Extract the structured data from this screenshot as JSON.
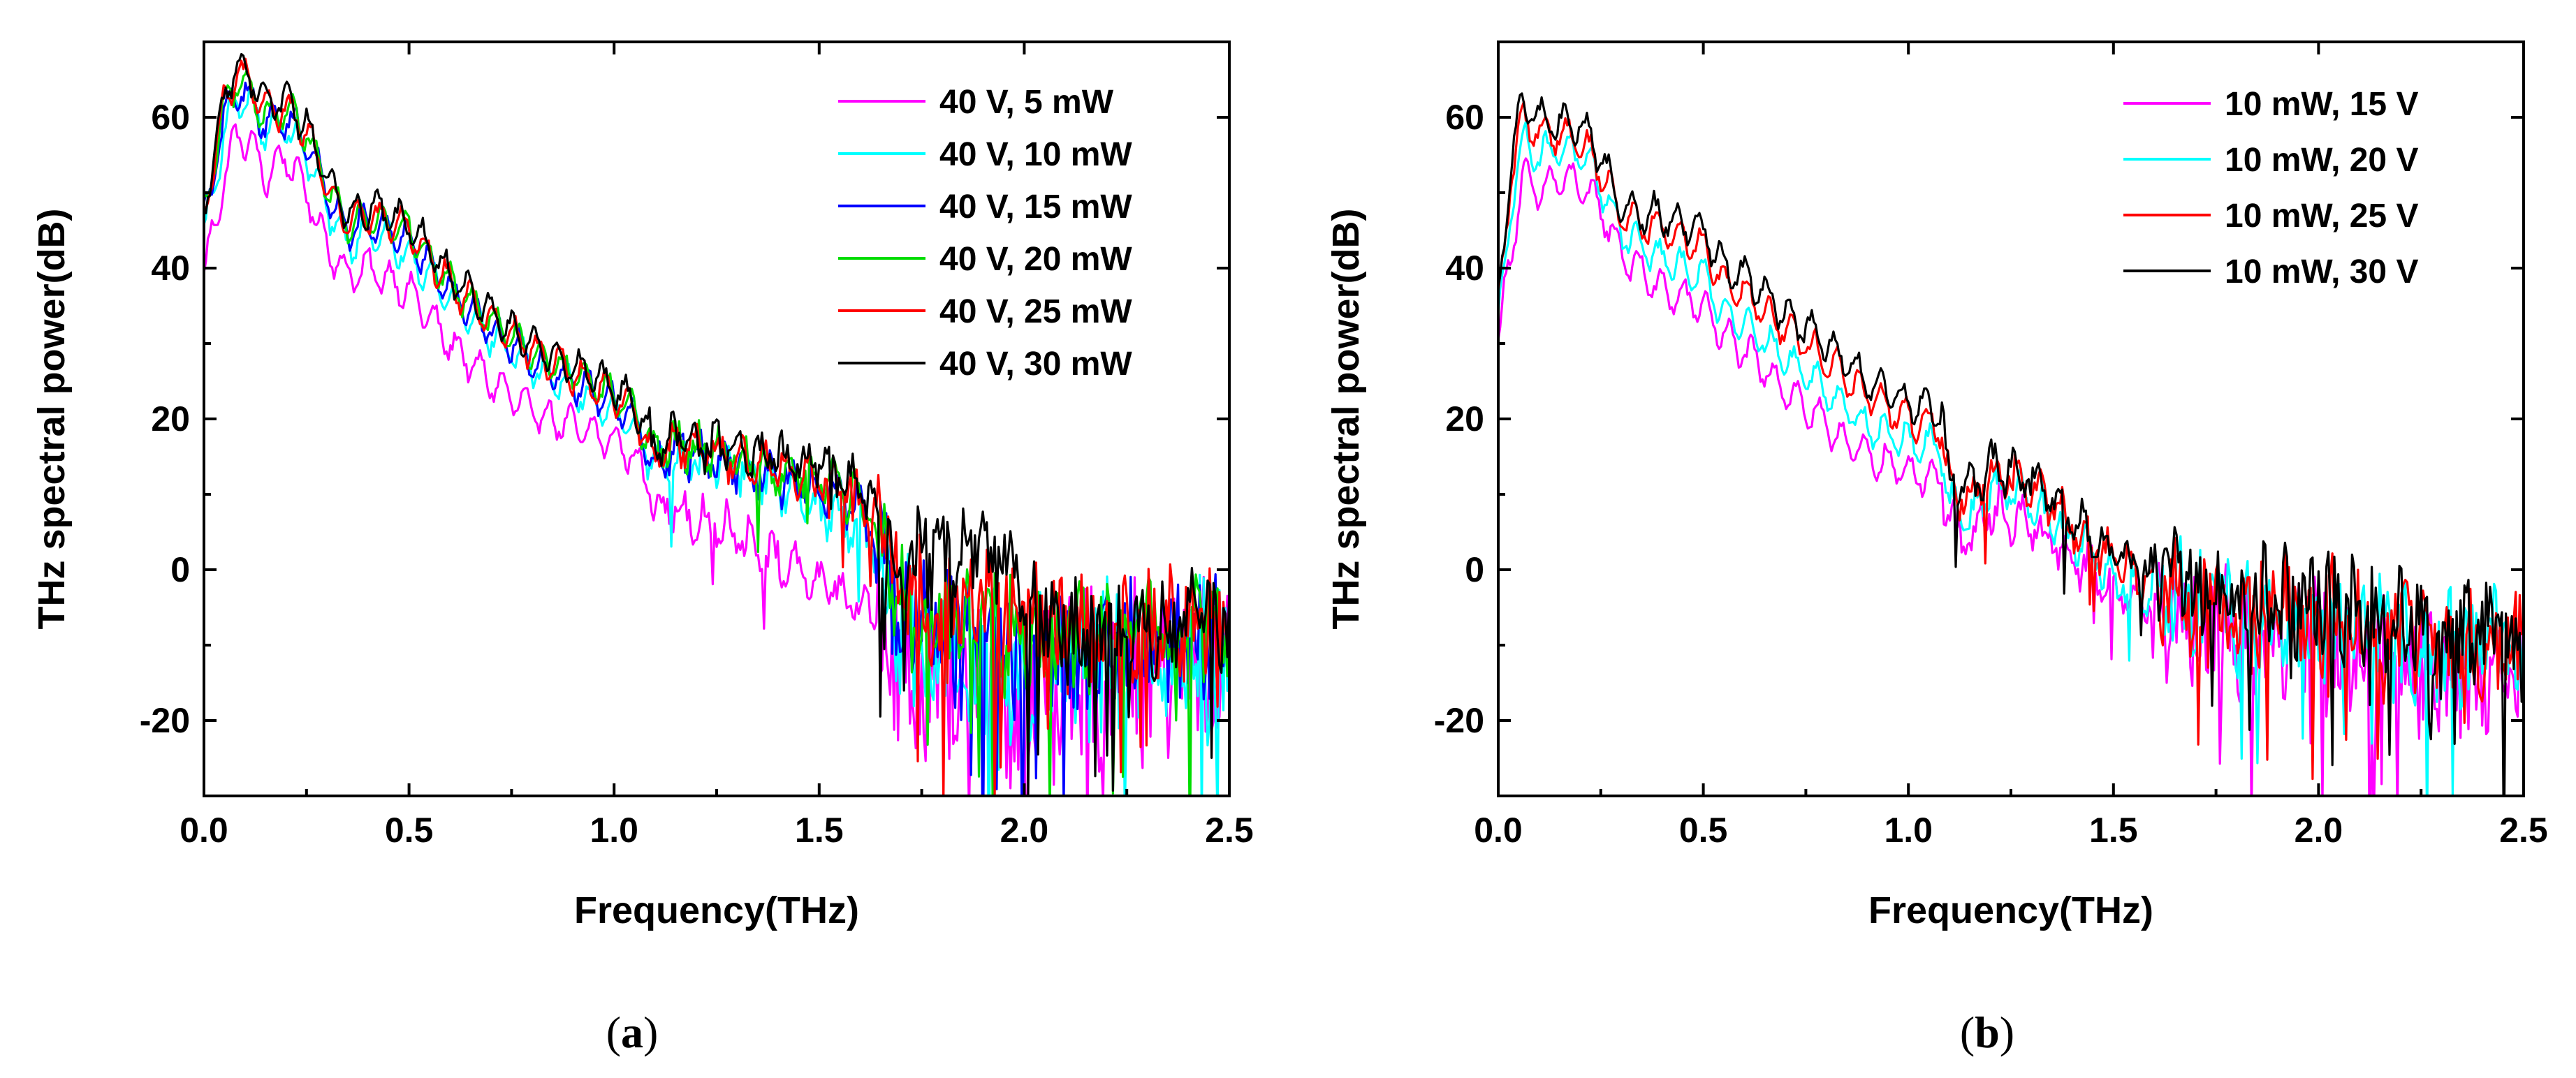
{
  "chart_data": [
    {
      "type": "line",
      "xlabel": "Frequency(THz)",
      "ylabel": "THz spectral power(dB)",
      "xlim": [
        0,
        2.5
      ],
      "ylim": [
        -30,
        70
      ],
      "xticks": [
        "0.0",
        "0.5",
        "1.0",
        "1.5",
        "2.0",
        "2.5"
      ],
      "yticks": [
        "-20",
        "0",
        "20",
        "40",
        "60"
      ],
      "xtick_values": [
        0,
        0.5,
        1.0,
        1.5,
        2.0,
        2.5
      ],
      "ytick_values": [
        -20,
        0,
        20,
        40,
        60
      ],
      "grid": false,
      "legend_position": "top-right",
      "panel_label": {
        "open": "(",
        "letter": "a",
        "close": ")"
      },
      "series": [
        {
          "name": "40 V, 5 mW",
          "color": "#ff00ff",
          "offset": -7.5,
          "cutoff": 1.64,
          "noise": 11,
          "x": [
            0,
            0.05,
            0.08,
            0.12,
            0.15,
            0.2,
            0.25,
            0.3,
            0.35,
            0.4,
            0.5,
            0.6,
            0.7,
            0.8,
            0.9,
            1.0,
            1.05,
            1.1,
            1.15,
            1.2,
            1.3,
            1.4,
            1.5,
            1.6,
            1.65,
            1.7,
            1.8,
            1.9,
            2.0,
            2.1,
            2.2,
            2.3,
            2.4,
            2.5
          ],
          "values": [
            39,
            52,
            58,
            56,
            52,
            55,
            50,
            43,
            39,
            40,
            37,
            30,
            25,
            21,
            19,
            17,
            15,
            9,
            8,
            7,
            5,
            1,
            -2,
            -5,
            -6,
            -14,
            -15,
            -16,
            -17,
            -15,
            -14,
            -14,
            -13,
            -13
          ]
        },
        {
          "name": "40 V, 10 mW",
          "color": "#00ffff",
          "offset": -2.5,
          "cutoff": 1.64,
          "noise": 9,
          "x": [
            0,
            0.05,
            0.08,
            0.12,
            0.15,
            0.2,
            0.25,
            0.3,
            0.35,
            0.4,
            0.5,
            0.6,
            0.7,
            0.8,
            0.9,
            1.0,
            1.05,
            1.1,
            1.15,
            1.2,
            1.3,
            1.4,
            1.5,
            1.6,
            1.65,
            1.7,
            1.8,
            1.9,
            2.0,
            2.1,
            2.2,
            2.3,
            2.4,
            2.5
          ],
          "values": [
            44,
            58,
            63,
            61,
            58,
            59,
            55,
            48,
            43,
            45,
            42,
            36,
            31,
            27,
            24,
            21,
            19,
            14,
            15,
            14,
            13,
            11,
            8,
            5,
            2,
            -8,
            -11,
            -12,
            -13,
            -12,
            -11,
            -11,
            -10,
            -10
          ]
        },
        {
          "name": "40 V, 15 mW",
          "color": "#0000ff",
          "offset": -0.8,
          "cutoff": 1.64,
          "noise": 8,
          "x": [
            0,
            0.05,
            0.08,
            0.12,
            0.15,
            0.2,
            0.25,
            0.3,
            0.35,
            0.4,
            0.5,
            0.6,
            0.7,
            0.8,
            0.9,
            1.0,
            1.05,
            1.1,
            1.15,
            1.2,
            1.3,
            1.4,
            1.5,
            1.6,
            1.65,
            1.7,
            1.8,
            1.9,
            2.0,
            2.1,
            2.2,
            2.3,
            2.4,
            2.5
          ],
          "values": [
            46,
            60,
            64,
            62,
            59,
            60,
            57,
            50,
            45,
            46,
            44,
            37,
            32,
            28,
            25,
            22,
            20,
            14,
            16,
            15,
            14,
            12,
            11,
            8,
            3,
            -6,
            -9,
            -10,
            -11,
            -10,
            -10,
            -10,
            -9,
            -9
          ]
        },
        {
          "name": "40 V, 20 mW",
          "color": "#00dd00",
          "offset": 0,
          "cutoff": 1.64,
          "noise": 7,
          "x": [
            0,
            0.05,
            0.08,
            0.12,
            0.15,
            0.2,
            0.25,
            0.3,
            0.35,
            0.4,
            0.5,
            0.6,
            0.7,
            0.8,
            0.9,
            1.0,
            1.05,
            1.1,
            1.15,
            1.2,
            1.3,
            1.4,
            1.5,
            1.6,
            1.65,
            1.7,
            1.8,
            1.9,
            2.0,
            2.1,
            2.2,
            2.3,
            2.4,
            2.5
          ],
          "values": [
            47,
            61,
            65,
            63,
            60,
            61,
            58,
            51,
            46,
            47,
            45,
            38,
            33,
            29,
            26,
            23,
            21,
            15,
            17,
            16,
            15,
            13,
            12,
            9,
            4,
            -4,
            -7,
            -8,
            -9,
            -9,
            -9,
            -9,
            -8,
            -8
          ]
        },
        {
          "name": "40 V, 25 mW",
          "color": "#ff0000",
          "offset": 0.5,
          "cutoff": 1.64,
          "noise": 7,
          "x": [
            0,
            0.05,
            0.08,
            0.12,
            0.15,
            0.2,
            0.25,
            0.3,
            0.35,
            0.4,
            0.5,
            0.6,
            0.7,
            0.8,
            0.9,
            1.0,
            1.05,
            1.1,
            1.15,
            1.2,
            1.3,
            1.4,
            1.5,
            1.6,
            1.65,
            1.7,
            1.8,
            1.9,
            2.0,
            2.1,
            2.2,
            2.3,
            2.4,
            2.5
          ],
          "values": [
            47,
            62,
            66,
            64,
            61,
            61,
            58,
            51,
            46,
            47,
            45,
            38,
            33,
            29,
            26,
            23,
            21,
            15,
            17,
            16,
            15,
            13,
            12,
            10,
            5,
            -2,
            -5,
            -6,
            -7,
            -8,
            -8,
            -8,
            -7,
            -7
          ]
        },
        {
          "name": "40 V, 30 mW",
          "color": "#000000",
          "offset": 1.2,
          "cutoff": 1.64,
          "noise": 6,
          "x": [
            0,
            0.05,
            0.08,
            0.12,
            0.15,
            0.2,
            0.25,
            0.3,
            0.35,
            0.4,
            0.5,
            0.6,
            0.7,
            0.8,
            0.9,
            1.0,
            1.05,
            1.1,
            1.15,
            1.2,
            1.3,
            1.4,
            1.5,
            1.6,
            1.65,
            1.7,
            1.8,
            1.9,
            2.0,
            2.1,
            2.2,
            2.3,
            2.4,
            2.5
          ],
          "values": [
            48,
            63,
            67,
            65,
            62,
            62,
            59,
            52,
            47,
            48,
            46,
            39,
            34,
            30,
            27,
            24,
            22,
            16,
            18,
            17,
            16,
            15,
            14,
            11,
            6,
            1,
            3,
            2,
            -3,
            -8,
            -8,
            -8,
            -7,
            -7
          ]
        }
      ]
    },
    {
      "type": "line",
      "xlabel": "Frequency(THz)",
      "ylabel": "THz spectral power(dB)",
      "xlim": [
        0,
        2.5
      ],
      "ylim": [
        -30,
        70
      ],
      "xticks": [
        "0.0",
        "0.5",
        "1.0",
        "1.5",
        "2.0",
        "2.5"
      ],
      "yticks": [
        "-20",
        "0",
        "20",
        "40",
        "60"
      ],
      "xtick_values": [
        0,
        0.5,
        1.0,
        1.5,
        2.0,
        2.5
      ],
      "ytick_values": [
        -20,
        0,
        20,
        40,
        60
      ],
      "grid": false,
      "legend_position": "top-right",
      "panel_label": {
        "open": "(",
        "letter": "b",
        "close": ")"
      },
      "series": [
        {
          "name": "10 mW, 15 V",
          "color": "#ff00ff",
          "offset": -4,
          "cutoff": 1.6,
          "noise": 8,
          "x": [
            0,
            0.03,
            0.06,
            0.1,
            0.15,
            0.2,
            0.25,
            0.3,
            0.4,
            0.5,
            0.55,
            0.6,
            0.7,
            0.8,
            0.9,
            1.0,
            1.08,
            1.1,
            1.15,
            1.2,
            1.3,
            1.4,
            1.5,
            1.6,
            1.7,
            1.8,
            1.9,
            2.0,
            2.1,
            2.2,
            2.3,
            2.4,
            2.5
          ],
          "values": [
            30,
            42,
            52,
            50,
            52,
            51,
            48,
            42,
            37,
            35,
            31,
            29,
            24,
            19,
            15,
            13,
            12,
            6,
            4,
            8,
            6,
            2,
            -3,
            -5,
            -7,
            -8,
            -9,
            -9,
            -11,
            -12,
            -13,
            -14,
            -14
          ]
        },
        {
          "name": "10 mW, 20 V",
          "color": "#00ffff",
          "offset": -1.5,
          "cutoff": 1.6,
          "noise": 7,
          "x": [
            0,
            0.03,
            0.06,
            0.1,
            0.15,
            0.2,
            0.25,
            0.3,
            0.4,
            0.5,
            0.55,
            0.6,
            0.7,
            0.8,
            0.9,
            1.0,
            1.08,
            1.1,
            1.15,
            1.2,
            1.3,
            1.4,
            1.5,
            1.6,
            1.7,
            1.8,
            1.9,
            2.0,
            2.1,
            2.2,
            2.3,
            2.4,
            2.5
          ],
          "values": [
            32,
            48,
            57,
            55,
            56,
            55,
            51,
            45,
            41,
            39,
            34,
            33,
            28,
            24,
            19,
            17,
            16,
            9,
            7,
            11,
            9,
            4,
            -1,
            -3,
            -5,
            -6,
            -7,
            -7,
            -8,
            -9,
            -10,
            -11,
            -11
          ]
        },
        {
          "name": "10 mW, 25 V",
          "color": "#ff0000",
          "offset": 0,
          "cutoff": 1.6,
          "noise": 7,
          "x": [
            0,
            0.03,
            0.06,
            0.1,
            0.15,
            0.2,
            0.25,
            0.3,
            0.4,
            0.5,
            0.55,
            0.6,
            0.7,
            0.8,
            0.9,
            1.0,
            1.08,
            1.1,
            1.15,
            1.2,
            1.3,
            1.4,
            1.5,
            1.6,
            1.7,
            1.8,
            1.9,
            2.0,
            2.1,
            2.2,
            2.3,
            2.4,
            2.5
          ],
          "values": [
            34,
            52,
            60,
            58,
            58,
            57,
            53,
            47,
            45,
            43,
            38,
            37,
            32,
            28,
            23,
            20,
            19,
            11,
            9,
            13,
            11,
            6,
            1,
            -2,
            -4,
            -5,
            -6,
            -6,
            -7,
            -8,
            -9,
            -10,
            -10
          ]
        },
        {
          "name": "10 mW, 30 V",
          "color": "#000000",
          "offset": 1,
          "cutoff": 1.6,
          "noise": 6,
          "x": [
            0,
            0.03,
            0.06,
            0.1,
            0.15,
            0.2,
            0.25,
            0.3,
            0.4,
            0.5,
            0.55,
            0.6,
            0.7,
            0.8,
            0.9,
            1.0,
            1.08,
            1.1,
            1.15,
            1.2,
            1.3,
            1.4,
            1.5,
            1.6,
            1.7,
            1.8,
            1.9,
            2.0,
            2.1,
            2.2,
            2.3,
            2.4,
            2.5
          ],
          "values": [
            35,
            54,
            62,
            60,
            59,
            59,
            55,
            48,
            47,
            45,
            40,
            39,
            34,
            30,
            25,
            22,
            21,
            12,
            10,
            14,
            12,
            7,
            2,
            -1,
            -3,
            -4,
            -4,
            -4,
            -6,
            -7,
            -8,
            -9,
            -10
          ]
        }
      ]
    }
  ]
}
